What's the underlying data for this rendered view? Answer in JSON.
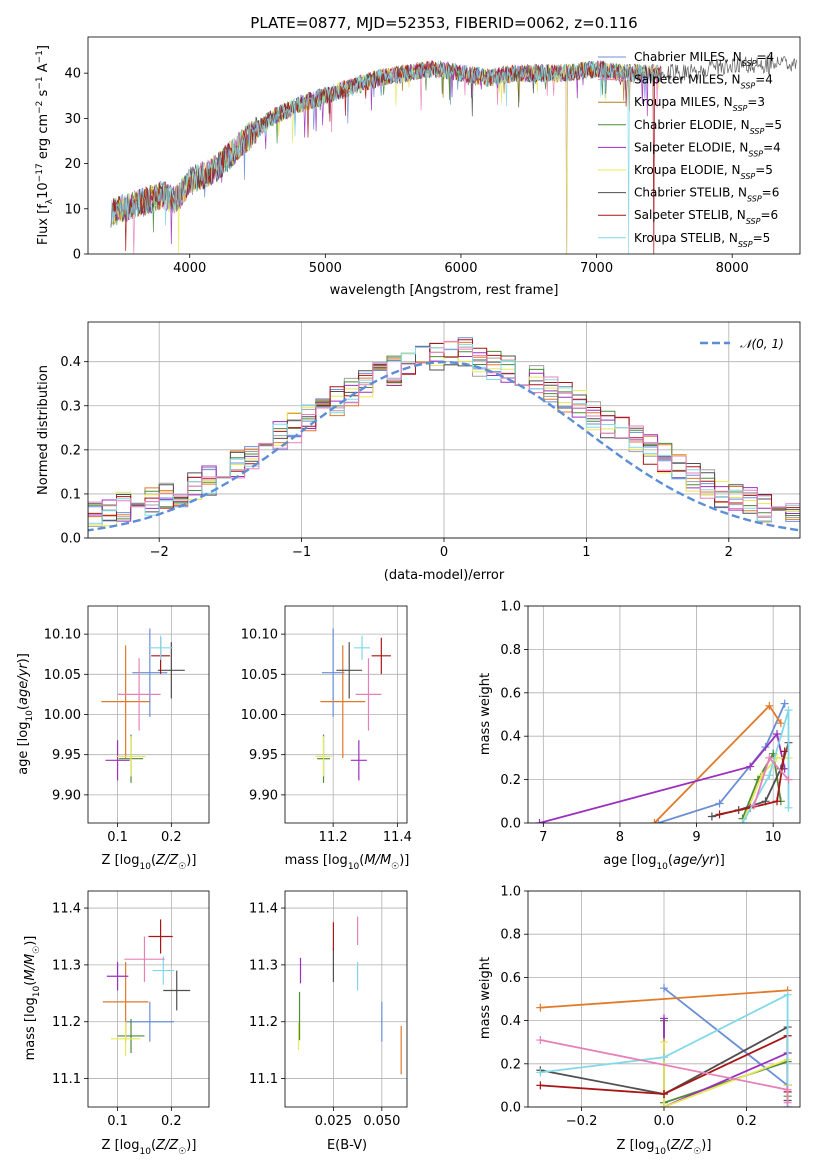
{
  "title": "PLATE=0877, MJD=52353, FIBERID=0062, z=0.116",
  "colors": [
    "#6a8fd8",
    "#e07a2a",
    "#a0a0a0",
    "#4e8a3a",
    "#9b30c0",
    "#e8e85a",
    "#505050",
    "#aa1515",
    "#80d8e8",
    "#e880b8"
  ],
  "chart_data": [
    {
      "type": "line",
      "id": "spectrum",
      "title": "PLATE=0877, MJD=52353, FIBERID=0062, z=0.116",
      "xlabel": "wavelength [Angstrom, rest frame]",
      "ylabel": "Flux [f_λ 10^-17 erg cm^-2 s^-1 A^-1]",
      "xlim": [
        3250,
        8500
      ],
      "ylim": [
        0,
        48
      ],
      "xticks": [
        4000,
        5000,
        6000,
        7000,
        8000
      ],
      "yticks": [
        0,
        10,
        20,
        30,
        40
      ],
      "grid": false,
      "legend_position": "top-right",
      "continuum": {
        "x": [
          3420,
          3600,
          3700,
          3800,
          3900,
          4000,
          4200,
          4400,
          4600,
          4800,
          5000,
          5200,
          5400,
          5600,
          5800,
          6000,
          6200,
          6400,
          6600,
          6800,
          7000,
          7200,
          7400,
          7600,
          7800,
          8000,
          8200,
          8400,
          8500
        ],
        "y": [
          9,
          11,
          12,
          13,
          12,
          16,
          19,
          25,
          30,
          33,
          35,
          37,
          39,
          40,
          41,
          40,
          39,
          40,
          40,
          40,
          41,
          40,
          40,
          40,
          41,
          42,
          42,
          42,
          42
        ]
      },
      "series": [
        {
          "name": "Chabrier MILES, N_SSP=4",
          "color": "#6a8fd8"
        },
        {
          "name": "Salpeter MILES, N_SSP=4",
          "color": "#e880b8"
        },
        {
          "name": "Kroupa MILES, N_SSP=3",
          "color": "#b08020"
        },
        {
          "name": "Chabrier ELODIE, N_SSP=5",
          "color": "#4e8a3a"
        },
        {
          "name": "Salpeter ELODIE, N_SSP=4",
          "color": "#9b30c0"
        },
        {
          "name": "Kroupa ELODIE, N_SSP=5",
          "color": "#e8e85a"
        },
        {
          "name": "Chabrier STELIB, N_SSP=6",
          "color": "#505050"
        },
        {
          "name": "Salpeter STELIB, N_SSP=6",
          "color": "#aa1515"
        },
        {
          "name": "Kroupa STELIB, N_SSP=5",
          "color": "#80d8e8"
        }
      ]
    },
    {
      "type": "line",
      "id": "residuals",
      "xlabel": "(data-model)/error",
      "ylabel": "Normed distribution",
      "xlim": [
        -2.5,
        2.5
      ],
      "ylim": [
        0,
        0.49
      ],
      "xticks": [
        -2,
        -1,
        0,
        1,
        2
      ],
      "yticks": [
        0.0,
        0.1,
        0.2,
        0.3,
        0.4
      ],
      "grid": true,
      "legend_position": "top-right",
      "legend": "N(0,1)",
      "bin_width": 0.1,
      "hist_base": [
        0.02,
        0.025,
        0.03,
        0.035,
        0.04,
        0.05,
        0.06,
        0.07,
        0.08,
        0.085,
        0.09,
        0.1,
        0.115,
        0.13,
        0.15,
        0.17,
        0.19,
        0.21,
        0.23,
        0.25,
        0.27,
        0.29,
        0.31,
        0.33,
        0.35,
        0.37,
        0.38,
        0.39,
        0.4,
        0.41,
        0.42,
        0.42,
        0.4,
        0.39,
        0.38,
        0.37,
        0.36,
        0.34,
        0.32,
        0.3,
        0.28,
        0.26,
        0.24,
        0.22,
        0.2,
        0.18,
        0.16,
        0.14,
        0.12,
        0.1,
        0.09,
        0.08,
        0.07,
        0.06,
        0.05,
        0.045,
        0.04,
        0.035,
        0.03,
        0.025
      ]
    },
    {
      "type": "scatter",
      "id": "age-vs-Z",
      "xlabel": "Z [log10(Z/Z☉)]",
      "ylabel": "age  [log10(age/yr)]",
      "xlim": [
        0.045,
        0.27
      ],
      "ylim": [
        9.865,
        10.135
      ],
      "xticks": [
        0.1,
        0.2
      ],
      "yticks": [
        9.9,
        9.95,
        10.0,
        10.05,
        10.1
      ],
      "grid": true,
      "points": [
        {
          "x": 0.16,
          "y": 10.052,
          "xerr": 0.065,
          "yerr": 0.11,
          "color": "#6a8fd8"
        },
        {
          "x": 0.115,
          "y": 10.016,
          "xerr": 0.09,
          "yerr": 0.14,
          "color": "#e07a2a"
        },
        {
          "x": 0.125,
          "y": 9.945,
          "xerr": 0.045,
          "yerr": 0.06,
          "color": "#4e8a3a"
        },
        {
          "x": 0.1,
          "y": 9.943,
          "xerr": 0.045,
          "yerr": 0.05,
          "color": "#9b30c0"
        },
        {
          "x": 0.125,
          "y": 9.948,
          "xerr": 0.055,
          "yerr": 0.05,
          "color": "#e8e85a"
        },
        {
          "x": 0.2,
          "y": 10.055,
          "xerr": 0.05,
          "yerr": 0.07,
          "color": "#505050"
        },
        {
          "x": 0.18,
          "y": 10.073,
          "xerr": 0.035,
          "yerr": 0.045,
          "color": "#aa1515"
        },
        {
          "x": 0.18,
          "y": 10.083,
          "xerr": 0.045,
          "yerr": 0.03,
          "color": "#80d8e8"
        },
        {
          "x": 0.14,
          "y": 10.025,
          "xerr": 0.08,
          "yerr": 0.09,
          "color": "#e880b8"
        }
      ]
    },
    {
      "type": "scatter",
      "id": "age-vs-mass",
      "xlabel": "mass [log10(M/M☉)]",
      "ylabel": "",
      "xlim": [
        11.05,
        11.43
      ],
      "ylim": [
        9.865,
        10.135
      ],
      "xticks": [
        11.2,
        11.4
      ],
      "yticks": [
        9.9,
        9.95,
        10.0,
        10.05,
        10.1
      ],
      "grid": true,
      "points": [
        {
          "x": 11.2,
          "y": 10.052,
          "xerr": 0.07,
          "yerr": 0.11,
          "color": "#6a8fd8"
        },
        {
          "x": 11.23,
          "y": 10.016,
          "xerr": 0.14,
          "yerr": 0.14,
          "color": "#e07a2a"
        },
        {
          "x": 11.17,
          "y": 9.945,
          "xerr": 0.04,
          "yerr": 0.06,
          "color": "#4e8a3a"
        },
        {
          "x": 11.28,
          "y": 9.943,
          "xerr": 0.05,
          "yerr": 0.05,
          "color": "#9b30c0"
        },
        {
          "x": 11.17,
          "y": 9.948,
          "xerr": 0.05,
          "yerr": 0.05,
          "color": "#e8e85a"
        },
        {
          "x": 11.25,
          "y": 10.055,
          "xerr": 0.08,
          "yerr": 0.07,
          "color": "#505050"
        },
        {
          "x": 11.35,
          "y": 10.073,
          "xerr": 0.06,
          "yerr": 0.045,
          "color": "#aa1515"
        },
        {
          "x": 11.29,
          "y": 10.083,
          "xerr": 0.05,
          "yerr": 0.03,
          "color": "#80d8e8"
        },
        {
          "x": 11.31,
          "y": 10.025,
          "xerr": 0.08,
          "yerr": 0.09,
          "color": "#e880b8"
        }
      ]
    },
    {
      "type": "line",
      "id": "weight-vs-age",
      "xlabel": "age  [log10(age/yr)]",
      "ylabel": "mass weight",
      "xlim": [
        6.8,
        10.35
      ],
      "ylim": [
        0.0,
        1.0
      ],
      "xticks": [
        7,
        8,
        9,
        10
      ],
      "yticks": [
        0.0,
        0.2,
        0.4,
        0.6,
        0.8,
        1.0
      ],
      "grid": true,
      "series": [
        {
          "color": "#6a8fd8",
          "x": [
            8.5,
            9.3,
            9.9,
            10.15
          ],
          "y": [
            0.0,
            0.09,
            0.35,
            0.55
          ]
        },
        {
          "color": "#e07a2a",
          "x": [
            8.45,
            9.95,
            10.1
          ],
          "y": [
            0.0,
            0.54,
            0.46
          ]
        },
        {
          "color": "#4e8a3a",
          "x": [
            9.6,
            9.8,
            10.0,
            10.1
          ],
          "y": [
            0.02,
            0.2,
            0.32,
            0.1
          ]
        },
        {
          "color": "#9b30c0",
          "x": [
            6.95,
            9.7,
            10.05,
            10.15
          ],
          "y": [
            0.0,
            0.26,
            0.41,
            0.25
          ]
        },
        {
          "color": "#e8e85a",
          "x": [
            9.6,
            9.85,
            10.05,
            10.2
          ],
          "y": [
            0.0,
            0.22,
            0.3,
            0.3
          ]
        },
        {
          "color": "#505050",
          "x": [
            9.2,
            9.55,
            9.9,
            10.1,
            10.2
          ],
          "y": [
            0.03,
            0.06,
            0.1,
            0.25,
            0.37
          ]
        },
        {
          "color": "#aa1515",
          "x": [
            9.3,
            9.7,
            10.05,
            10.15
          ],
          "y": [
            0.04,
            0.07,
            0.1,
            0.33
          ]
        },
        {
          "color": "#80d8e8",
          "x": [
            9.6,
            9.95,
            10.2,
            10.2
          ],
          "y": [
            0.0,
            0.22,
            0.52,
            0.07
          ]
        },
        {
          "color": "#e880b8",
          "x": [
            9.75,
            9.95,
            10.2
          ],
          "y": [
            0.08,
            0.3,
            0.2
          ]
        }
      ]
    },
    {
      "type": "scatter",
      "id": "mass-vs-Z",
      "xlabel": "Z [log10(Z/Z☉)]",
      "ylabel": "mass [log10(M/M☉)]",
      "xlim": [
        0.045,
        0.27
      ],
      "ylim": [
        11.05,
        11.43
      ],
      "xticks": [
        0.1,
        0.2
      ],
      "yticks": [
        11.1,
        11.2,
        11.3,
        11.4
      ],
      "grid": true,
      "points": [
        {
          "x": 0.16,
          "y": 11.2,
          "xerr": 0.09,
          "yerr": 0.07,
          "color": "#6a8fd8"
        },
        {
          "x": 0.115,
          "y": 11.235,
          "xerr": 0.085,
          "yerr": 0.14,
          "color": "#e07a2a"
        },
        {
          "x": 0.125,
          "y": 11.175,
          "xerr": 0.05,
          "yerr": 0.06,
          "color": "#4e8a3a"
        },
        {
          "x": 0.1,
          "y": 11.28,
          "xerr": 0.04,
          "yerr": 0.05,
          "color": "#9b30c0"
        },
        {
          "x": 0.115,
          "y": 11.17,
          "xerr": 0.055,
          "yerr": 0.06,
          "color": "#e8e85a"
        },
        {
          "x": 0.21,
          "y": 11.255,
          "xerr": 0.05,
          "yerr": 0.07,
          "color": "#505050"
        },
        {
          "x": 0.18,
          "y": 11.35,
          "xerr": 0.045,
          "yerr": 0.06,
          "color": "#aa1515"
        },
        {
          "x": 0.185,
          "y": 11.29,
          "xerr": 0.04,
          "yerr": 0.05,
          "color": "#80d8e8"
        },
        {
          "x": 0.15,
          "y": 11.31,
          "xerr": 0.075,
          "yerr": 0.08,
          "color": "#e880b8"
        }
      ]
    },
    {
      "type": "scatter",
      "id": "mass-vs-EBV",
      "xlabel": "E(B-V)",
      "ylabel": "",
      "xlim": [
        0.0,
        0.063
      ],
      "ylim": [
        11.05,
        11.43
      ],
      "xticks": [
        0.025,
        0.05
      ],
      "yticks": [
        11.1,
        11.2,
        11.3,
        11.4
      ],
      "grid": true,
      "points": [
        {
          "x": 0.05,
          "y": 11.2,
          "yerr": 0.07,
          "color": "#6a8fd8"
        },
        {
          "x": 0.06,
          "y": 11.15,
          "yerr": 0.085,
          "color": "#e07a2a"
        },
        {
          "x": 0.007,
          "y": 11.175,
          "yerr": 0.05,
          "color": "#e8e85a"
        },
        {
          "x": 0.0075,
          "y": 11.21,
          "yerr": 0.085,
          "color": "#4e8a3a"
        },
        {
          "x": 0.008,
          "y": 11.29,
          "yerr": 0.045,
          "color": "#9b30c0"
        },
        {
          "x": 0.025,
          "y": 11.3,
          "yerr": 0.06,
          "color": "#505050"
        },
        {
          "x": 0.025,
          "y": 11.35,
          "yerr": 0.05,
          "color": "#aa1515"
        },
        {
          "x": 0.0375,
          "y": 11.36,
          "yerr": 0.05,
          "color": "#e880b8"
        },
        {
          "x": 0.0375,
          "y": 11.28,
          "yerr": 0.05,
          "color": "#80d8e8"
        }
      ]
    },
    {
      "type": "line",
      "id": "weight-vs-Z",
      "xlabel": "Z [log10(Z/Z☉)]",
      "ylabel": "mass weight",
      "xlim": [
        -0.33,
        0.33
      ],
      "ylim": [
        0.0,
        1.0
      ],
      "xticks": [
        -0.2,
        0.0,
        0.2
      ],
      "yticks": [
        0.0,
        0.2,
        0.4,
        0.6,
        0.8,
        1.0
      ],
      "grid": true,
      "series": [
        {
          "color": "#6a8fd8",
          "x": [
            0.0,
            0.3,
            0.3
          ],
          "y": [
            0.55,
            0.1,
            0.0
          ]
        },
        {
          "color": "#e07a2a",
          "x": [
            -0.3,
            0.3
          ],
          "y": [
            0.46,
            0.54
          ]
        },
        {
          "color": "#4e8a3a",
          "x": [
            0.0,
            0.0,
            0.3,
            0.3
          ],
          "y": [
            0.4,
            0.02,
            0.21,
            0.05
          ]
        },
        {
          "color": "#9b30c0",
          "x": [
            0.0,
            0.0,
            0.3,
            0.3
          ],
          "y": [
            0.41,
            0.0,
            0.25,
            0.1
          ]
        },
        {
          "color": "#e8e85a",
          "x": [
            0.0,
            0.0,
            0.3,
            0.3
          ],
          "y": [
            0.3,
            0.0,
            0.22,
            0.1
          ]
        },
        {
          "color": "#505050",
          "x": [
            -0.3,
            0.0,
            0.3,
            0.3
          ],
          "y": [
            0.17,
            0.06,
            0.37,
            0.03
          ]
        },
        {
          "color": "#aa1515",
          "x": [
            -0.3,
            0.0,
            0.3,
            0.3
          ],
          "y": [
            0.1,
            0.06,
            0.33,
            0.07
          ]
        },
        {
          "color": "#80d8e8",
          "x": [
            -0.3,
            0.0,
            0.3,
            0.3
          ],
          "y": [
            0.16,
            0.23,
            0.52,
            0.0
          ]
        },
        {
          "color": "#e880b8",
          "x": [
            -0.3,
            0.3,
            0.3
          ],
          "y": [
            0.31,
            0.08,
            0.02
          ]
        }
      ]
    }
  ]
}
